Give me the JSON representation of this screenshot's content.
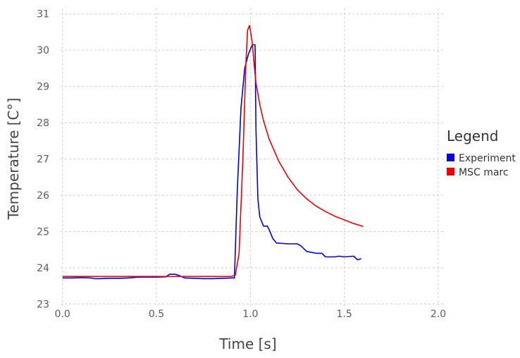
{
  "chart_data": {
    "type": "line",
    "xlabel": "Time [s]",
    "ylabel": "Temperature [C°]",
    "xlim": [
      -0.01,
      2.03
    ],
    "ylim": [
      22.95,
      31.15
    ],
    "xticks": [
      0.0,
      0.5,
      1.0,
      1.5,
      2.0
    ],
    "xtick_labels": [
      "0.0",
      "0.5",
      "1.0",
      "1.5",
      "2.0"
    ],
    "yticks": [
      23,
      24,
      25,
      26,
      27,
      28,
      29,
      30,
      31
    ],
    "ytick_labels": [
      "23",
      "24",
      "25",
      "26",
      "27",
      "28",
      "29",
      "30",
      "31"
    ],
    "grid": true,
    "legend": {
      "title": "Legend",
      "position": "right"
    },
    "series": [
      {
        "name": "Experiment",
        "color": "#0000dd",
        "x": [
          0.0,
          0.05,
          0.1,
          0.15,
          0.17,
          0.2,
          0.25,
          0.3,
          0.35,
          0.4,
          0.45,
          0.5,
          0.55,
          0.57,
          0.6,
          0.62,
          0.65,
          0.7,
          0.75,
          0.8,
          0.85,
          0.9,
          0.915,
          0.93,
          0.95,
          0.97,
          0.99,
          1.01,
          1.025,
          1.03,
          1.04,
          1.05,
          1.07,
          1.09,
          1.1,
          1.12,
          1.14,
          1.15,
          1.2,
          1.25,
          1.27,
          1.3,
          1.35,
          1.38,
          1.4,
          1.45,
          1.47,
          1.5,
          1.55,
          1.57,
          1.59
        ],
        "y": [
          23.72,
          23.72,
          23.73,
          23.72,
          23.7,
          23.7,
          23.71,
          23.71,
          23.72,
          23.74,
          23.74,
          23.74,
          23.75,
          23.82,
          23.82,
          23.79,
          23.72,
          23.71,
          23.7,
          23.7,
          23.71,
          23.72,
          23.72,
          26.1,
          28.4,
          29.5,
          29.9,
          30.15,
          30.15,
          27.8,
          25.9,
          25.4,
          25.15,
          25.15,
          25.05,
          24.8,
          24.68,
          24.68,
          24.66,
          24.66,
          24.6,
          24.45,
          24.4,
          24.4,
          24.3,
          24.3,
          24.32,
          24.3,
          24.32,
          24.22,
          24.25
        ]
      },
      {
        "name": "MSC marc",
        "color": "#ee0000",
        "x": [
          0.0,
          0.5,
          0.9,
          0.92,
          0.94,
          0.96,
          0.975,
          0.985,
          0.995,
          1.0,
          1.01,
          1.02,
          1.03,
          1.05,
          1.07,
          1.1,
          1.15,
          1.2,
          1.25,
          1.3,
          1.35,
          1.4,
          1.45,
          1.5,
          1.55,
          1.6
        ],
        "y": [
          23.76,
          23.76,
          23.76,
          23.8,
          24.4,
          27.0,
          29.5,
          30.55,
          30.68,
          30.55,
          30.2,
          29.6,
          29.1,
          28.5,
          28.05,
          27.55,
          26.95,
          26.5,
          26.15,
          25.9,
          25.7,
          25.55,
          25.42,
          25.32,
          25.22,
          25.14
        ]
      }
    ]
  }
}
